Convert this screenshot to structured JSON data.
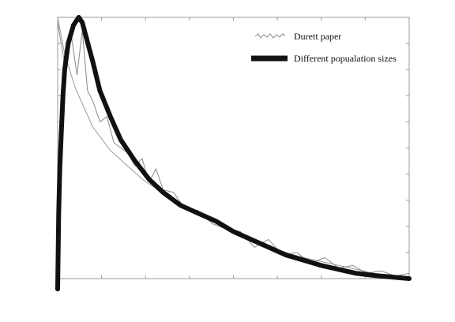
{
  "chart_data": {
    "type": "line",
    "title": "",
    "xlabel": "",
    "ylabel": "",
    "xlim": [
      0,
      1
    ],
    "ylim": [
      0,
      1
    ],
    "grid": false,
    "legend_position": "top-right",
    "tick_labels_shown": false,
    "series": [
      {
        "name": "Durett paper",
        "style": "thin noisy gray line",
        "color": "#8a8a8a",
        "x": [
          0.0,
          0.02,
          0.04,
          0.055,
          0.07,
          0.085,
          0.1,
          0.12,
          0.14,
          0.16,
          0.18,
          0.2,
          0.22,
          0.24,
          0.26,
          0.28,
          0.3,
          0.33,
          0.36,
          0.4,
          0.44,
          0.48,
          0.52,
          0.56,
          0.6,
          0.64,
          0.68,
          0.72,
          0.76,
          0.8,
          0.84,
          0.88,
          0.92,
          0.96,
          1.0
        ],
        "y": [
          0.98,
          0.82,
          0.92,
          0.78,
          0.95,
          0.72,
          0.68,
          0.6,
          0.62,
          0.52,
          0.5,
          0.48,
          0.43,
          0.46,
          0.37,
          0.42,
          0.34,
          0.33,
          0.27,
          0.26,
          0.21,
          0.19,
          0.18,
          0.12,
          0.15,
          0.09,
          0.1,
          0.06,
          0.08,
          0.04,
          0.05,
          0.02,
          0.03,
          0.01,
          0.02
        ]
      },
      {
        "name": "Different popualation sizes",
        "style": "thick black line",
        "color": "#111111",
        "x": [
          0.0,
          0.003,
          0.006,
          0.01,
          0.015,
          0.02,
          0.03,
          0.045,
          0.06,
          0.07,
          0.08,
          0.1,
          0.12,
          0.15,
          0.18,
          0.22,
          0.26,
          0.3,
          0.35,
          0.4,
          0.45,
          0.5,
          0.55,
          0.6,
          0.65,
          0.7,
          0.75,
          0.8,
          0.85,
          0.9,
          0.95,
          1.0
        ],
        "y": [
          -0.04,
          0.25,
          0.42,
          0.55,
          0.7,
          0.8,
          0.9,
          0.97,
          1.0,
          0.98,
          0.93,
          0.83,
          0.72,
          0.62,
          0.53,
          0.45,
          0.38,
          0.33,
          0.28,
          0.25,
          0.22,
          0.18,
          0.15,
          0.12,
          0.09,
          0.07,
          0.05,
          0.035,
          0.02,
          0.012,
          0.006,
          0.0
        ]
      },
      {
        "name": "",
        "style": "thin smooth gray fitted curve",
        "color": "#9a9a9a",
        "x": [
          0.0,
          0.02,
          0.05,
          0.08,
          0.1,
          0.15,
          0.2,
          0.25,
          0.3,
          0.35,
          0.4,
          0.5,
          0.6,
          0.7,
          0.8,
          0.9,
          1.0
        ],
        "y": [
          1.0,
          0.86,
          0.73,
          0.64,
          0.58,
          0.49,
          0.43,
          0.37,
          0.33,
          0.29,
          0.25,
          0.18,
          0.12,
          0.08,
          0.05,
          0.02,
          0.0
        ]
      }
    ]
  },
  "legend": {
    "items": [
      {
        "label": "Durett paper",
        "series": 0
      },
      {
        "label": "Different popualation sizes",
        "series": 1
      }
    ]
  },
  "colors": {
    "axes": "#9a9a9a",
    "background": "#ffffff",
    "text": "#111111"
  }
}
